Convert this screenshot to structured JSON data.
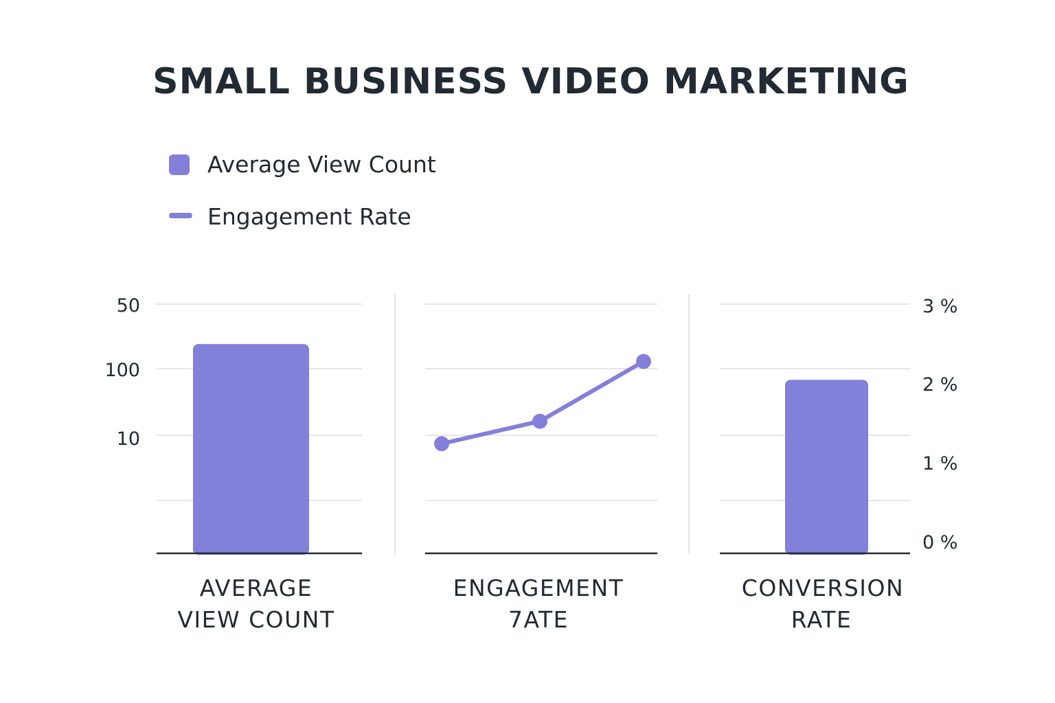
{
  "colors": {
    "accent": "#8280d9",
    "text": "#222a33",
    "grid": "#e6e6e6"
  },
  "chart_data": {
    "type": "bar",
    "title": "SMALL BUSINESS VIDEO MARKETING",
    "legend": {
      "placement": "top-left",
      "items": [
        {
          "label": "Average View Count",
          "marker": "square"
        },
        {
          "label": "Engagement Rate",
          "marker": "line"
        }
      ]
    },
    "grid": true,
    "left_axis": {
      "tick_labels": [
        "50",
        "100",
        "10"
      ]
    },
    "right_axis": {
      "tick_labels": [
        "3 %",
        "2 %",
        "1 %",
        "0 %"
      ],
      "ylim": [
        0,
        3
      ]
    },
    "panels": [
      {
        "category_lines": [
          "AVERAGE",
          "VIEW COUNT"
        ],
        "mark": "bar",
        "value_fraction_of_axis": 0.84
      },
      {
        "category_lines": [
          "ENGAGEMENT",
          "7ATE"
        ],
        "mark": "line",
        "points_fraction_of_axis": [
          0.44,
          0.53,
          0.77
        ]
      },
      {
        "category_lines": [
          "CONVERSION",
          "RATE"
        ],
        "mark": "bar",
        "value": 2.1,
        "unit": "%"
      }
    ]
  }
}
